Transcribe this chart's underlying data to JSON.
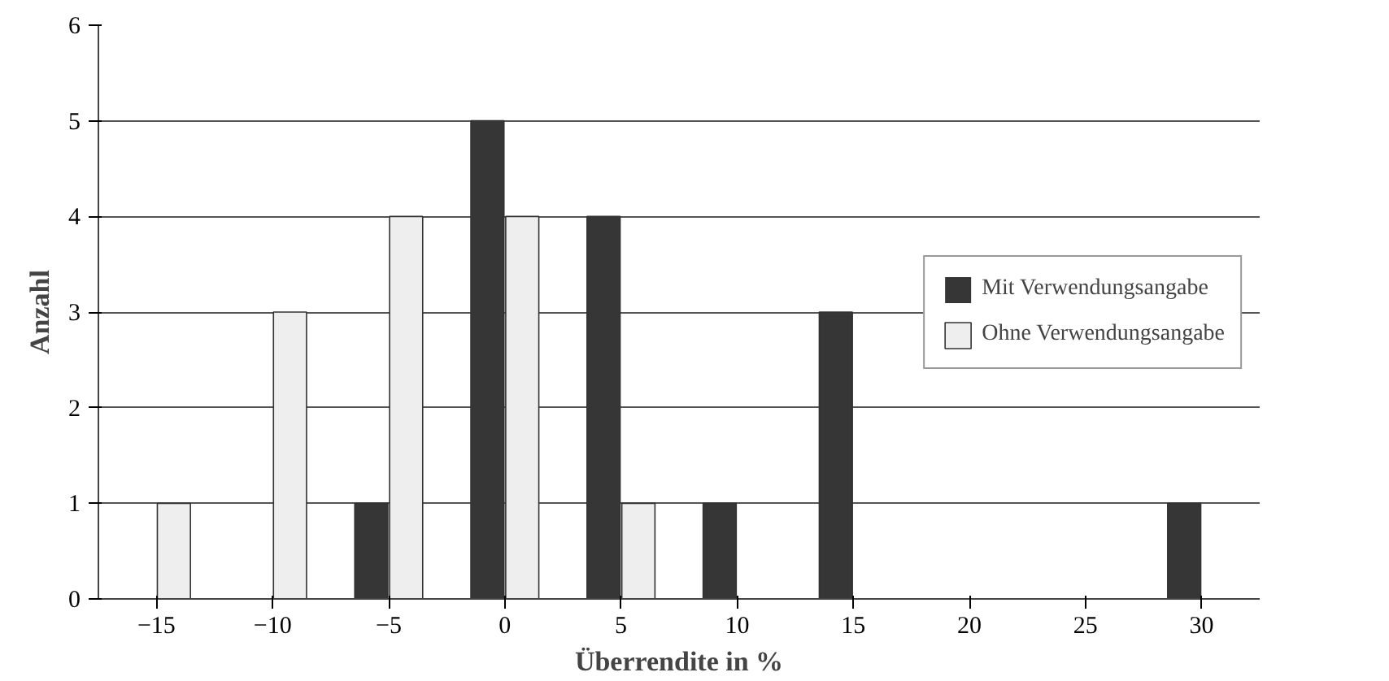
{
  "chart_data": {
    "type": "bar",
    "xlabel": "Überrendite in %",
    "ylabel": "Anzahl",
    "categories": [
      "−15",
      "−10",
      "−5",
      "0",
      "5",
      "10",
      "15",
      "20",
      "25",
      "30"
    ],
    "series": [
      {
        "name": "Mit Verwendungsangabe",
        "color": "#363636",
        "values": [
          0,
          0,
          1,
          5,
          4,
          1,
          3,
          0,
          0,
          1
        ]
      },
      {
        "name": "Ohne Verwendungsangabe",
        "color": "#eeeeee",
        "values": [
          1,
          3,
          4,
          4,
          1,
          0,
          0,
          0,
          0,
          0
        ]
      }
    ],
    "ylim": [
      0,
      6
    ],
    "yticks": [
      0,
      1,
      2,
      3,
      4,
      5,
      6
    ],
    "grid": "y",
    "legend": "right"
  }
}
